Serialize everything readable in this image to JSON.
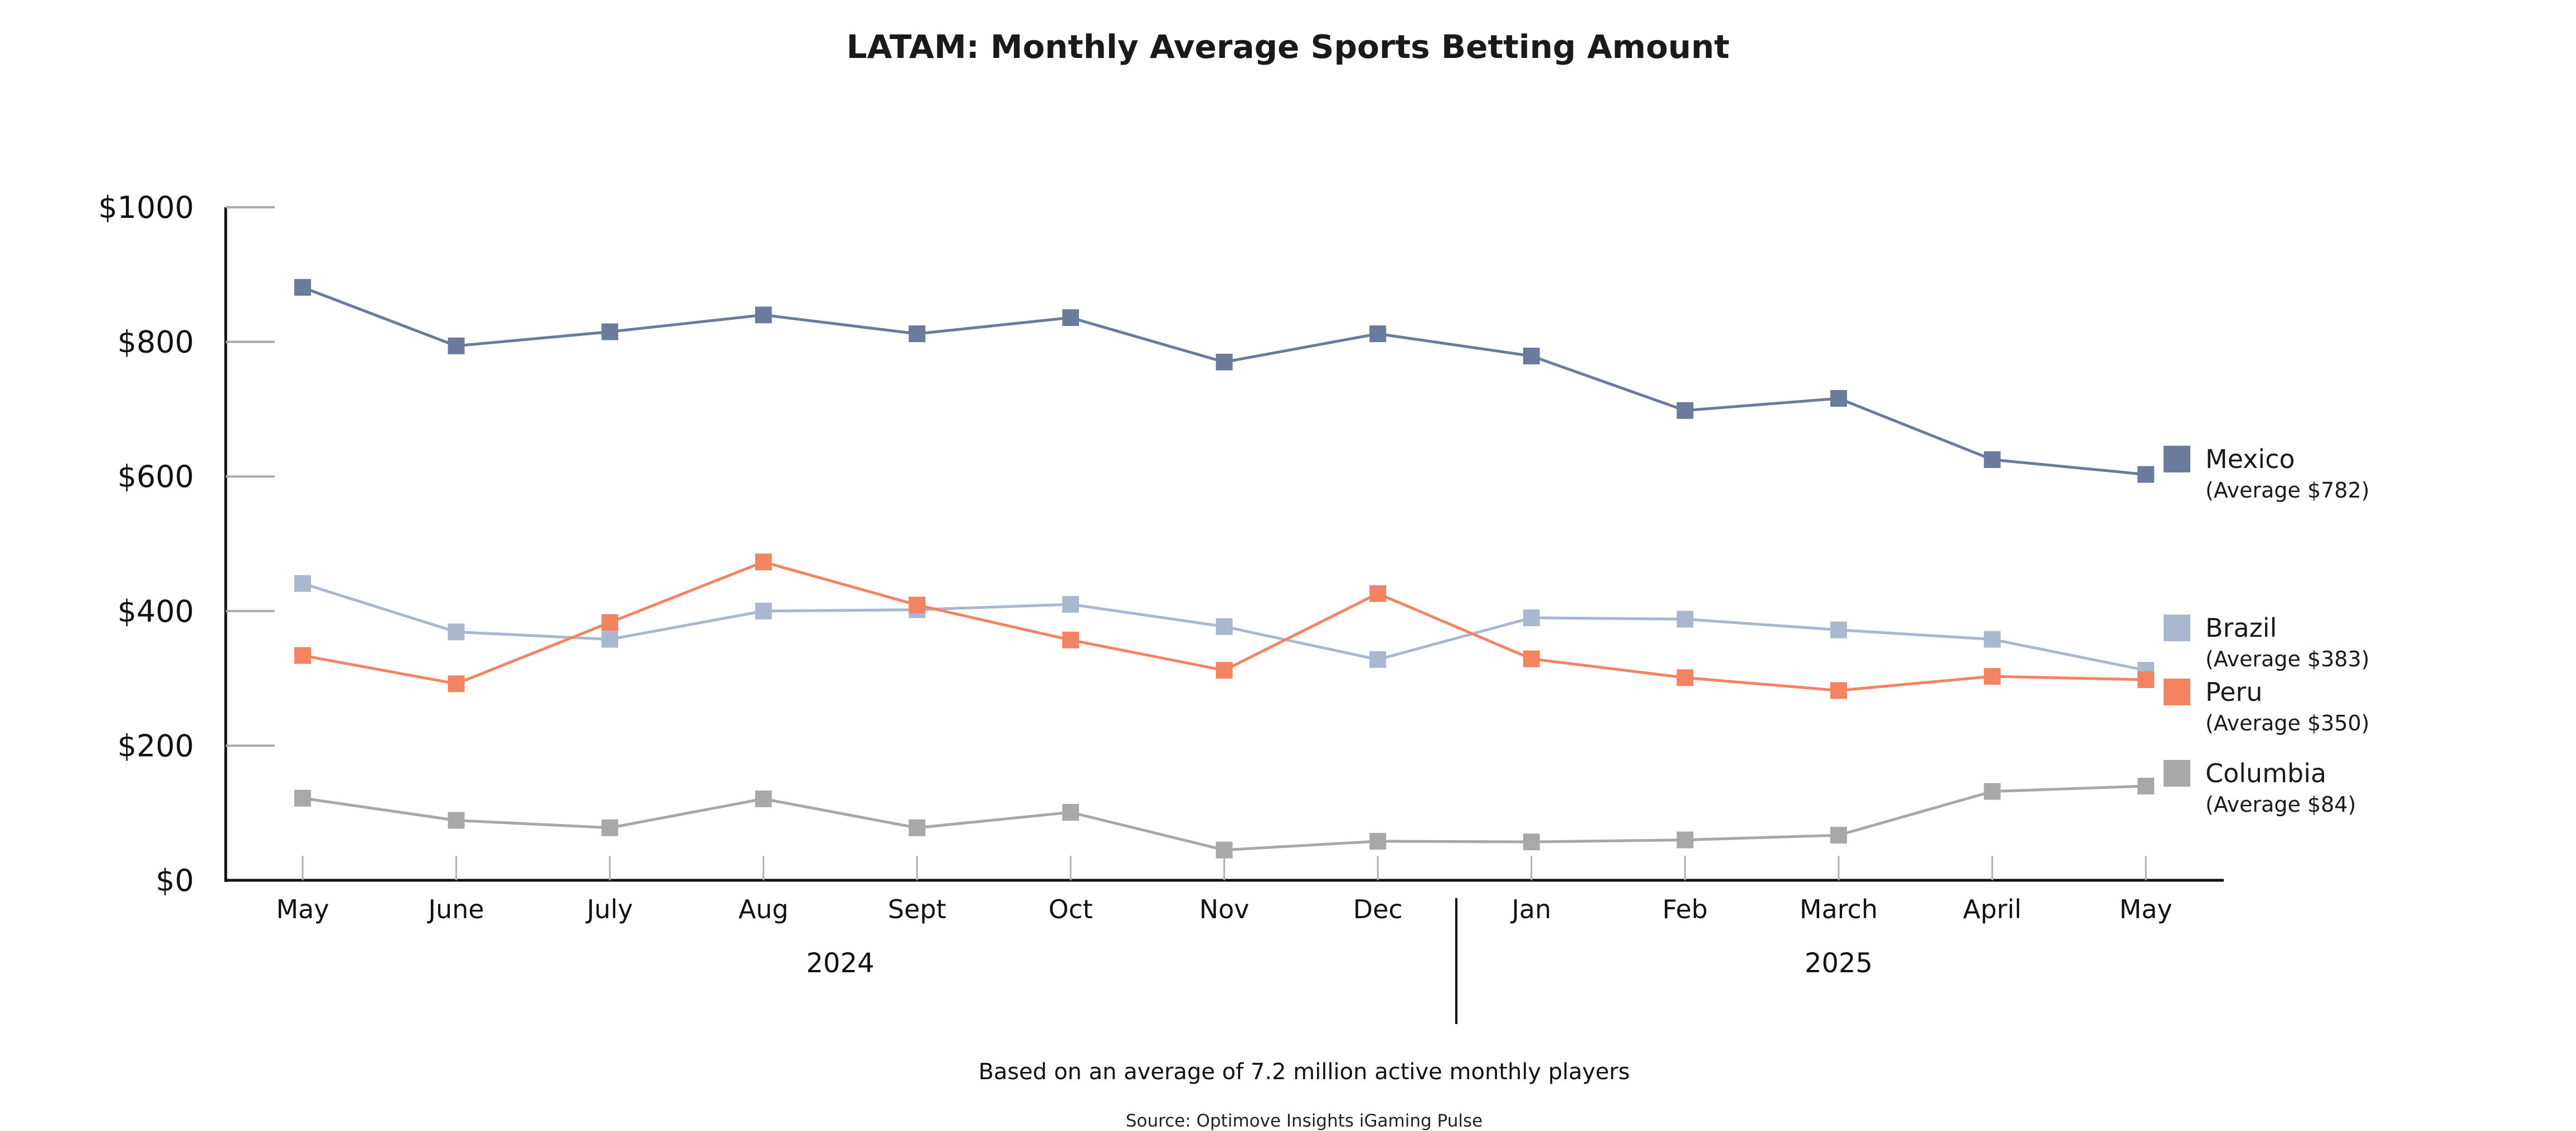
{
  "chart_data": {
    "type": "line",
    "title": "LATAM: Monthly Average Sports Betting Amount",
    "xlabel": "",
    "ylabel": "",
    "ylim": [
      0,
      1000
    ],
    "yticks": [
      0,
      200,
      400,
      600,
      800,
      1000
    ],
    "ytick_labels": [
      "$0",
      "$200",
      "$400",
      "$600",
      "$800",
      "$1000"
    ],
    "categories": [
      "May",
      "June",
      "July",
      "Aug",
      "Sept",
      "Oct",
      "Nov",
      "Dec",
      "Jan",
      "Feb",
      "March",
      "April",
      "May"
    ],
    "year_groups": [
      {
        "label": "2024",
        "start": 0,
        "end": 7
      },
      {
        "label": "2025",
        "start": 8,
        "end": 12
      }
    ],
    "grid": false,
    "legend_position": "right",
    "series": [
      {
        "name": "Mexico",
        "average_label": "(Average $782)",
        "color": "#6b7b9c",
        "values": [
          881,
          794,
          815,
          840,
          812,
          836,
          770,
          812,
          779,
          698,
          716,
          625,
          603
        ]
      },
      {
        "name": "Brazil",
        "average_label": "(Average $383)",
        "color": "#a9b8cf",
        "values": [
          441,
          369,
          358,
          400,
          402,
          410,
          377,
          328,
          390,
          388,
          372,
          358,
          312
        ]
      },
      {
        "name": "Peru",
        "average_label": "(Average $350)",
        "color": "#f28462",
        "values": [
          334,
          292,
          383,
          473,
          409,
          357,
          312,
          426,
          329,
          301,
          282,
          303,
          298
        ]
      },
      {
        "name": "Columbia",
        "average_label": "(Average $84)",
        "color": "#a8a8a8",
        "values": [
          122,
          89,
          78,
          121,
          78,
          101,
          45,
          58,
          57,
          60,
          67,
          132,
          140
        ]
      }
    ],
    "footnote": "Based on an average of 7.2 million active monthly players",
    "source": "Source: Optimove Insights iGaming Pulse"
  }
}
